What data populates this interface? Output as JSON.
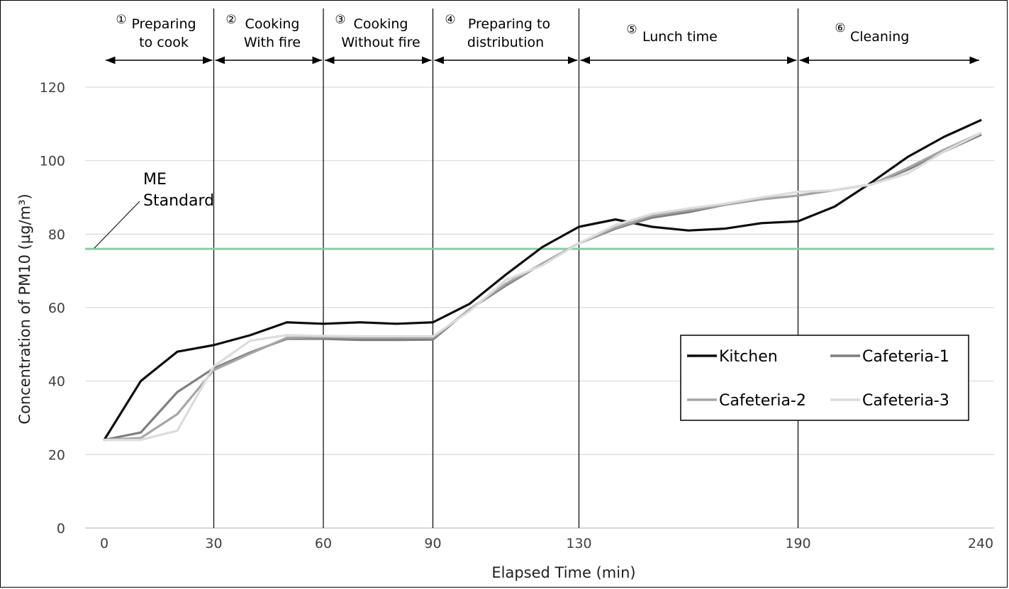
{
  "chart_data": {
    "type": "line",
    "xlabel": "Elapsed Time (min)",
    "ylabel": "Concentration of PM10 (µg/m³)",
    "ylim": [
      0,
      130
    ],
    "xlim": [
      0,
      242
    ],
    "y_ticks": [
      "0",
      "20",
      "40",
      "60",
      "80",
      "100",
      "120"
    ],
    "x_ticks": [
      {
        "value": 0,
        "label": "0"
      },
      {
        "value": 30,
        "label": "30"
      },
      {
        "value": 60,
        "label": "60"
      },
      {
        "value": 90,
        "label": "90"
      },
      {
        "value": 130,
        "label": "130"
      },
      {
        "value": 190,
        "label": "190"
      },
      {
        "value": 240,
        "label": "240"
      }
    ],
    "gridlines": "horizontal",
    "phase_boundaries": [
      30,
      60,
      90,
      130,
      190
    ],
    "phases": [
      {
        "number": "①",
        "line1": "Preparing",
        "line2": "to cook",
        "start": 0,
        "end": 30
      },
      {
        "number": "②",
        "line1": "Cooking",
        "line2": "With fire",
        "start": 30,
        "end": 60
      },
      {
        "number": "③",
        "line1": "Cooking",
        "line2": "Without fire",
        "start": 60,
        "end": 90
      },
      {
        "number": "④",
        "line1": "Preparing to",
        "line2": "distribution",
        "start": 90,
        "end": 130
      },
      {
        "number": "⑤",
        "line1": "Lunch time",
        "line2": "",
        "start": 130,
        "end": 190
      },
      {
        "number": "⑥",
        "line1": "Cleaning",
        "line2": "",
        "start": 190,
        "end": 240
      }
    ],
    "standard": {
      "label_line1": "ME",
      "label_line2": "Standard",
      "value": 76,
      "color": "#7fd3a0"
    },
    "legend_position": "center-right",
    "x": [
      0,
      10,
      20,
      30,
      40,
      50,
      60,
      70,
      80,
      90,
      100,
      110,
      120,
      130,
      140,
      150,
      160,
      170,
      180,
      190,
      200,
      210,
      220,
      230,
      240
    ],
    "series": [
      {
        "name": "Kitchen",
        "color": "#0d0d0d",
        "values": [
          24,
          40,
          48,
          49.8,
          52.5,
          56,
          55.6,
          56,
          55.6,
          56,
          61,
          69,
          76.5,
          82,
          84,
          82,
          81,
          81.5,
          83,
          83.5,
          87.5,
          94,
          101,
          106.5,
          111
        ]
      },
      {
        "name": "Cafeteria-1",
        "color": "#7f7f7f",
        "values": [
          24,
          26,
          37,
          43.5,
          47.8,
          51.5,
          51.5,
          51.2,
          51.2,
          51.3,
          59.5,
          66,
          72,
          77.5,
          81.5,
          84.5,
          86,
          88,
          89.5,
          90.5,
          92,
          93.5,
          97.5,
          102.5,
          107
        ]
      },
      {
        "name": "Cafeteria-2",
        "color": "#a6a6a6",
        "values": [
          24,
          24.5,
          31,
          43,
          47.5,
          51.8,
          52,
          51.8,
          51.8,
          51.8,
          59.5,
          66.5,
          72,
          77.5,
          81.8,
          85,
          86.5,
          88,
          89.5,
          90.5,
          92,
          93.5,
          98,
          103,
          107.5
        ]
      },
      {
        "name": "Cafeteria-3",
        "color": "#dcdcdc",
        "values": [
          24,
          24,
          26.5,
          44,
          51,
          52.5,
          52.3,
          52.2,
          52.2,
          52.2,
          59,
          67.5,
          71.5,
          77.5,
          82.5,
          85.5,
          87,
          88.3,
          90,
          91.5,
          92,
          93.5,
          96.5,
          102.5,
          107.5
        ]
      }
    ]
  }
}
